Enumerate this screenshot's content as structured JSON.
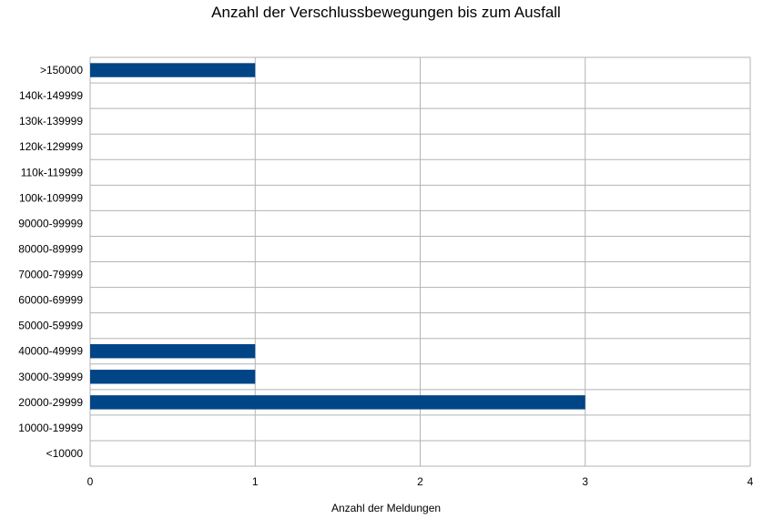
{
  "chart_data": {
    "type": "bar",
    "orientation": "horizontal",
    "title": "Anzahl der Verschlussbewegungen bis zum Ausfall",
    "xlabel": "Anzahl der Meldungen",
    "ylabel": "",
    "categories": [
      "<10000",
      "10000-19999",
      "20000-29999",
      "30000-39999",
      "40000-49999",
      "50000-59999",
      "60000-69999",
      "70000-79999",
      "80000-89999",
      "90000-99999",
      "100k-109999",
      "110k-119999",
      "120k-129999",
      "130k-139999",
      "140k-149999",
      ">150000"
    ],
    "values": [
      0,
      0,
      3,
      1,
      1,
      0,
      0,
      0,
      0,
      0,
      0,
      0,
      0,
      0,
      0,
      1
    ],
    "xlim": [
      0,
      4
    ],
    "xticks": [
      "0",
      "1",
      "2",
      "3",
      "4"
    ],
    "grid": true,
    "legend": "none",
    "bar_color": "#004586",
    "grid_color": "#b3b3b3"
  }
}
